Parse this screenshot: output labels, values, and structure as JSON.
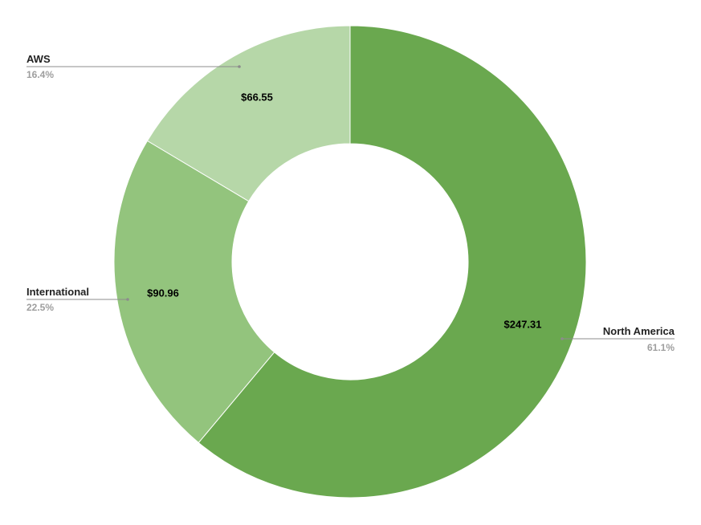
{
  "chart_data": {
    "type": "pie",
    "donut": true,
    "categories": [
      "North America",
      "International",
      "AWS"
    ],
    "values": [
      247.31,
      90.96,
      66.55
    ],
    "value_labels": [
      "$247.31",
      "$90.96",
      "$66.55"
    ],
    "percent_labels": [
      "61.1%",
      "22.5%",
      "16.4%"
    ],
    "colors": [
      "#6aa84f",
      "#93c47d",
      "#b6d7a8"
    ],
    "legend": "labeled"
  }
}
